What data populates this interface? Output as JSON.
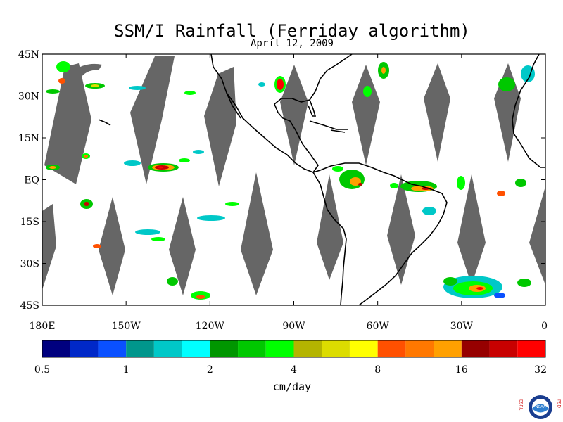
{
  "title": "SSM/I Rainfall (Ferriday algorithm)",
  "subtitle": "April 12, 2009",
  "map": {
    "lon_range": [
      180,
      360
    ],
    "lat_range": [
      -45,
      45
    ],
    "lat_ticks": [
      {
        "value": 45,
        "label": "45N"
      },
      {
        "value": 30,
        "label": "30N"
      },
      {
        "value": 15,
        "label": "15N"
      },
      {
        "value": 0,
        "label": "EQ"
      },
      {
        "value": -15,
        "label": "15S"
      },
      {
        "value": -30,
        "label": "30S"
      },
      {
        "value": -45,
        "label": "45S"
      }
    ],
    "lon_ticks": [
      {
        "value": 180,
        "label": "180E"
      },
      {
        "value": 210,
        "label": "150W"
      },
      {
        "value": 240,
        "label": "120W"
      },
      {
        "value": 270,
        "label": "90W"
      },
      {
        "value": 300,
        "label": "60W"
      },
      {
        "value": 330,
        "label": "30W"
      },
      {
        "value": 360,
        "label": "0"
      }
    ],
    "no_data_color": "#666666"
  },
  "colorbar": {
    "unit": "cm/day",
    "colors": [
      "#00007f",
      "#0028c8",
      "#0a50ff",
      "#00968c",
      "#00c8c8",
      "#00ffff",
      "#009600",
      "#00c800",
      "#00ff00",
      "#b4b400",
      "#dcdc00",
      "#ffff00",
      "#ff5000",
      "#ff7800",
      "#ffa000",
      "#960000",
      "#c80000",
      "#ff0000"
    ],
    "labels": [
      "0.5",
      "1",
      "2",
      "4",
      "8",
      "16",
      "32"
    ]
  },
  "logo_text": {
    "left": "ESRL",
    "right": "PSD",
    "center": "NOAA"
  }
}
